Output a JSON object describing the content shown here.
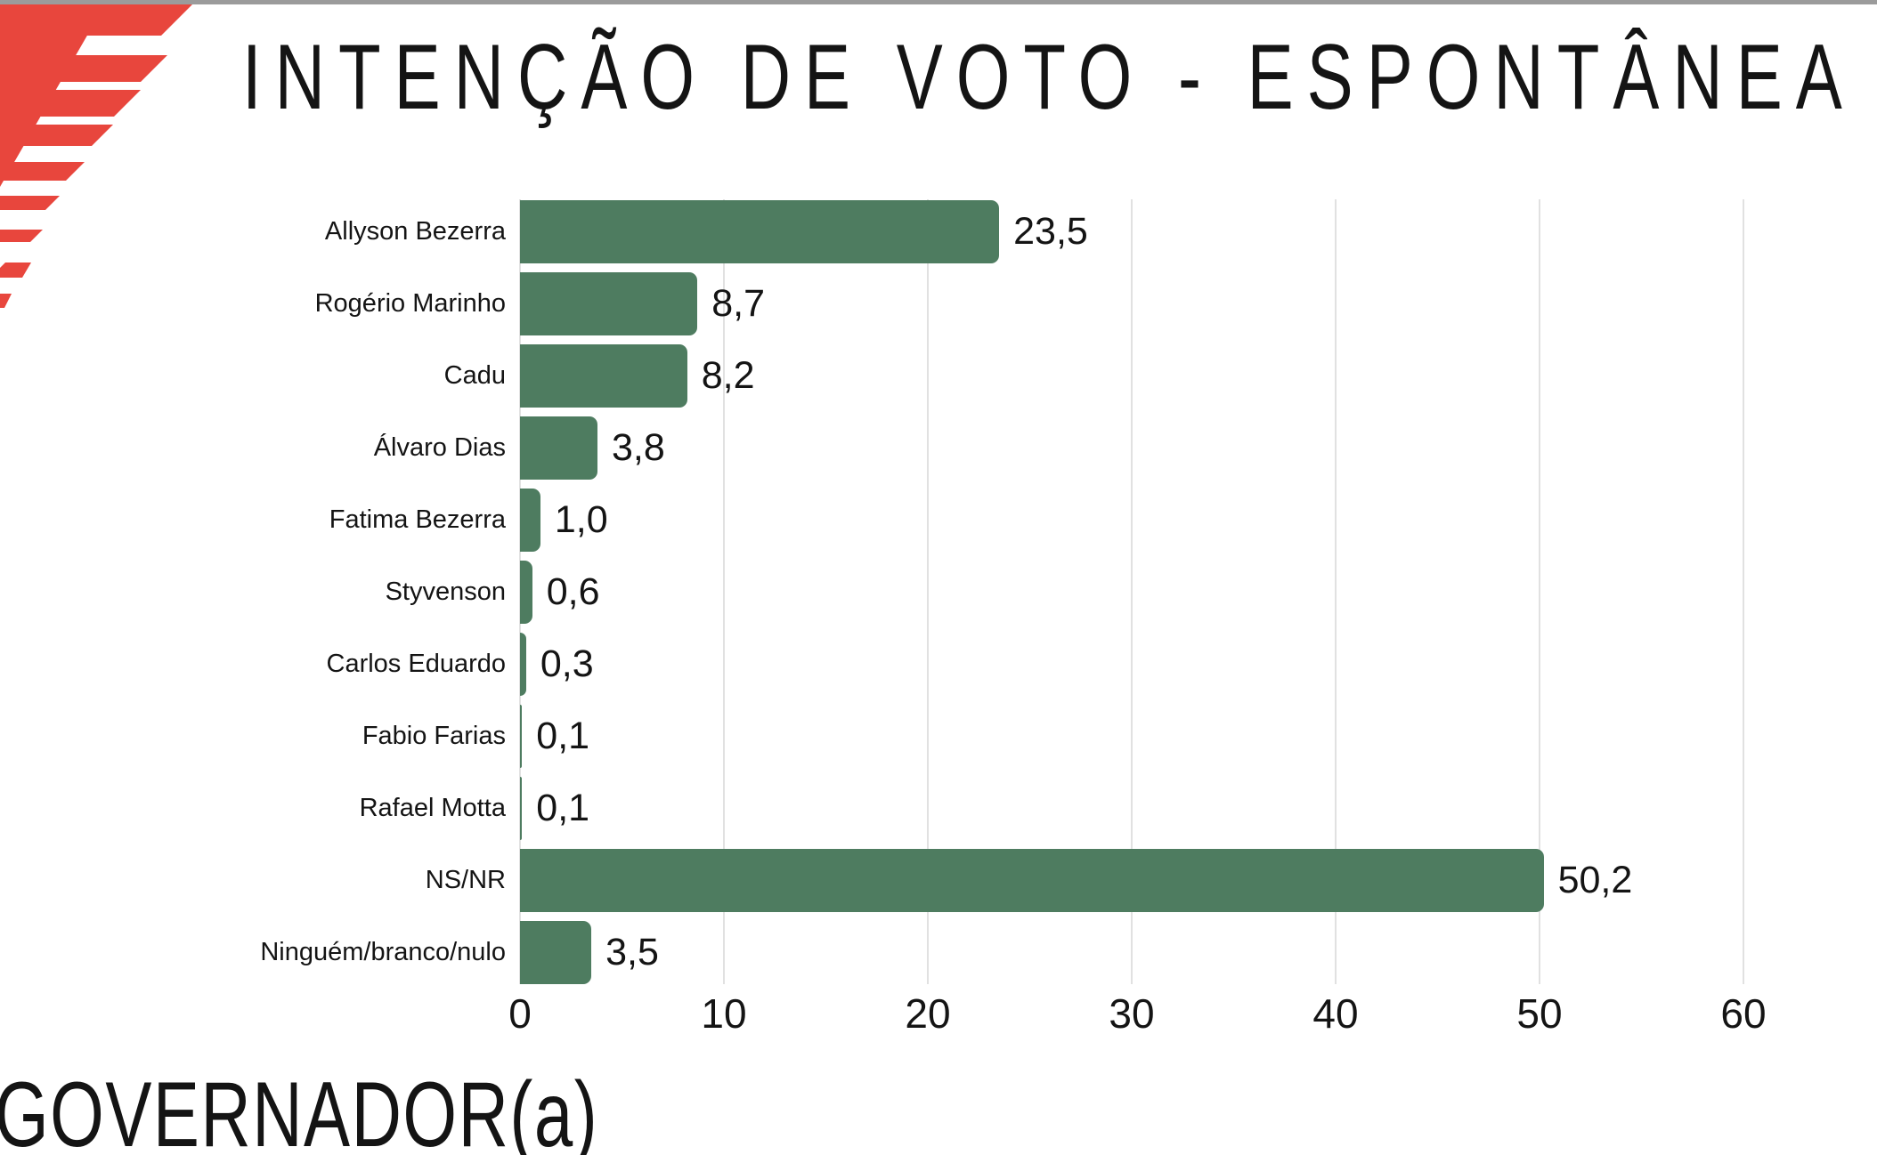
{
  "page": {
    "background": "#ffffff",
    "top_bar_color": "#9b9b9b",
    "text_color": "#141414"
  },
  "logo": {
    "name": "red-stripes-logo",
    "color": "#e8463d"
  },
  "header": {
    "title": "INTENÇÃO DE VOTO - ESPONTÂNEA"
  },
  "footer": {
    "question_label": "GOVERNADOR(a)"
  },
  "chart_data": {
    "type": "bar",
    "orientation": "horizontal",
    "title": "INTENÇÃO DE VOTO - ESPONTÂNEA",
    "categories": [
      "Allyson Bezerra",
      "Rogério Marinho",
      "Cadu",
      "Álvaro Dias",
      "Fatima Bezerra",
      "Styvenson",
      "Carlos Eduardo",
      "Fabio Farias",
      "Rafael Motta",
      "NS/NR",
      "Ninguém/branco/nulo"
    ],
    "values": [
      23.5,
      8.7,
      8.2,
      3.8,
      1.0,
      0.6,
      0.3,
      0.1,
      0.1,
      50.2,
      3.5
    ],
    "value_labels": [
      "23,5",
      "8,7",
      "8,2",
      "3,8",
      "1,0",
      "0,6",
      "0,3",
      "0,1",
      "0,1",
      "50,2",
      "3,5"
    ],
    "bar_color": "#4e7c60",
    "x_ticks": [
      0,
      10,
      20,
      30,
      40,
      50,
      60
    ],
    "x_tick_labels": [
      "0",
      "10",
      "20",
      "30",
      "40",
      "50",
      "60"
    ],
    "xlim": [
      0,
      60
    ],
    "xlabel": "",
    "ylabel": "",
    "grid": true,
    "gridline_color": "#e1e1e1",
    "legend": false
  }
}
